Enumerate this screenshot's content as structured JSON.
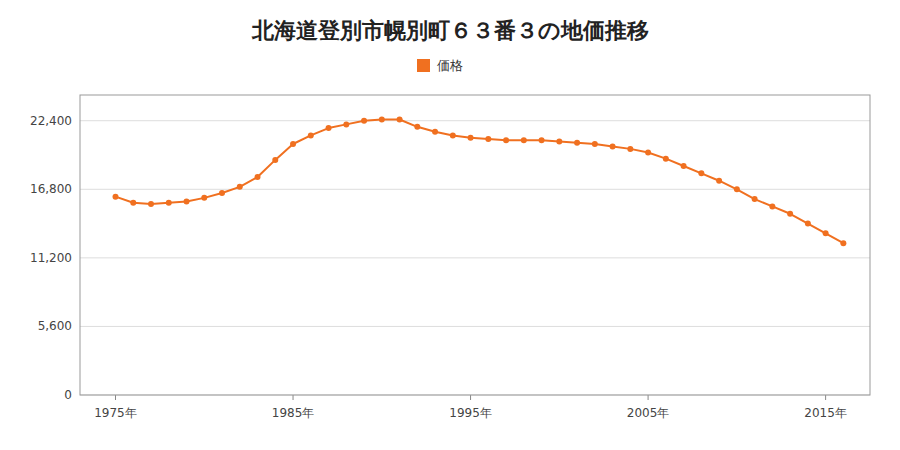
{
  "chart_data": {
    "type": "line",
    "title": "北海道登別市幌別町６３番３の地価推移",
    "x": [
      1975,
      1976,
      1977,
      1978,
      1979,
      1980,
      1981,
      1982,
      1983,
      1984,
      1985,
      1986,
      1987,
      1988,
      1989,
      1990,
      1991,
      1992,
      1993,
      1994,
      1995,
      1996,
      1997,
      1998,
      1999,
      2000,
      2001,
      2002,
      2003,
      2004,
      2005,
      2006,
      2007,
      2008,
      2009,
      2010,
      2011,
      2012,
      2013,
      2014,
      2015,
      2016
    ],
    "series": [
      {
        "name": "価格",
        "color": "#f07020",
        "marker": "circle",
        "values": [
          16200,
          15700,
          15600,
          15700,
          15800,
          16100,
          16500,
          17000,
          17800,
          19200,
          20500,
          21200,
          21800,
          22100,
          22400,
          22500,
          22500,
          21900,
          21500,
          21200,
          21000,
          20900,
          20800,
          20800,
          20800,
          20700,
          20600,
          20500,
          20300,
          20100,
          19800,
          19300,
          18700,
          18100,
          17500,
          16800,
          16000,
          15400,
          14800,
          14000,
          13200,
          12400
        ]
      }
    ],
    "xlim": [
      1973,
      2017.5
    ],
    "xticks": [
      {
        "value": 1975,
        "label": "1975年"
      },
      {
        "value": 1985,
        "label": "1985年"
      },
      {
        "value": 1995,
        "label": "1995年"
      },
      {
        "value": 2005,
        "label": "2005年"
      },
      {
        "value": 2015,
        "label": "2015年"
      }
    ],
    "ylim": [
      0,
      24500
    ],
    "yticks": [
      0,
      {
        "value": 5600,
        "label": "5,600"
      },
      {
        "value": 11200,
        "label": "11,200"
      },
      {
        "value": 16800,
        "label": "16,800"
      },
      {
        "value": 22400,
        "label": "22,400"
      }
    ],
    "grid": true,
    "legend": "top"
  }
}
